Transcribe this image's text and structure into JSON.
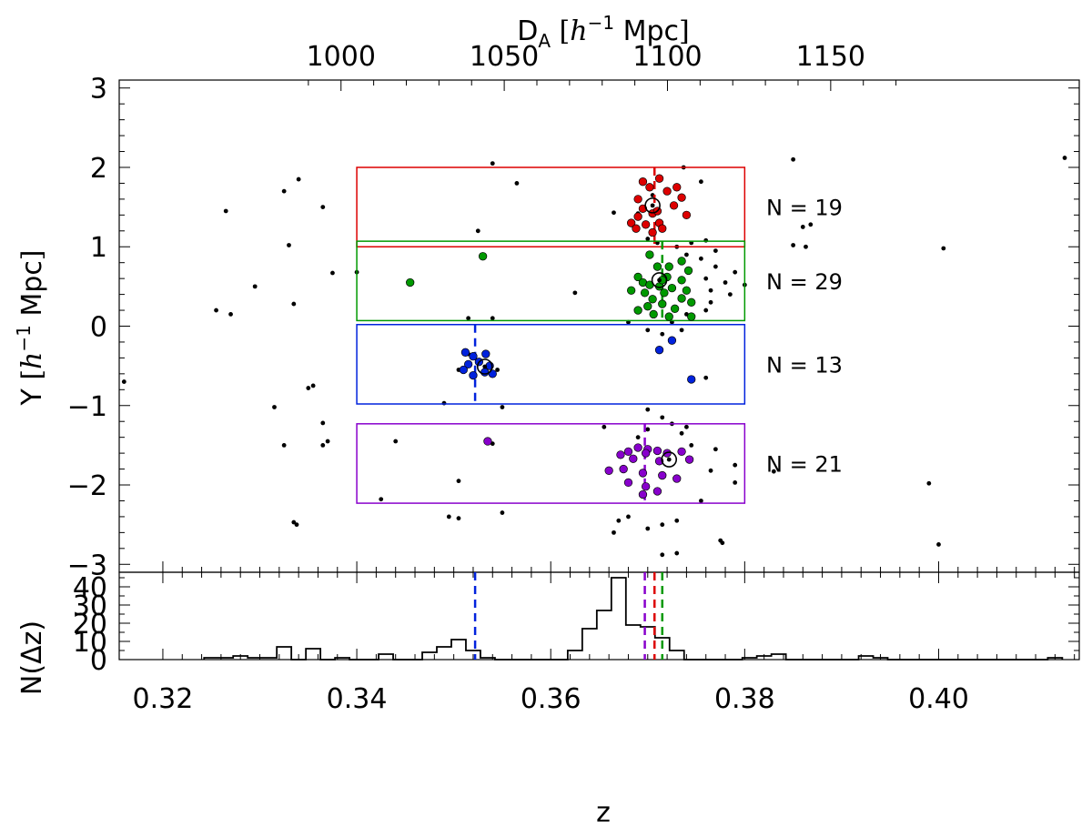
{
  "chart_data": {
    "type": "scatter",
    "top_panel": {
      "ylabel_prefix": "Y",
      "ylabel_h": "h",
      "ylabel_exp": "−1",
      "ylabel_unit": "Mpc",
      "ylim": [
        -3.1,
        3.1
      ],
      "yticks": [
        -3,
        -2,
        -1,
        0,
        1,
        2,
        3
      ],
      "ytick_labels": [
        "−3",
        "−2",
        "−1",
        "0",
        "1",
        "2",
        "3"
      ],
      "top_axis": {
        "label_prefix": "D",
        "label_sub": "A",
        "label_h": "h",
        "label_exp": "−1",
        "label_unit": "Mpc",
        "ticks": [
          1000,
          1050,
          1100,
          1150
        ],
        "tick_labels": [
          "1000",
          "1050",
          "1100",
          "1150"
        ]
      },
      "groups": [
        {
          "color": "#dd0000",
          "z_range": [
            0.34,
            0.38
          ],
          "y_range": [
            1.0,
            2.0
          ],
          "mean_z": 0.3707,
          "center": [
            0.3705,
            1.52
          ],
          "count_label": "N = 19",
          "points": [
            [
              0.3695,
              1.82
            ],
            [
              0.3712,
              1.86
            ],
            [
              0.3702,
              1.75
            ],
            [
              0.372,
              1.7
            ],
            [
              0.373,
              1.75
            ],
            [
              0.3735,
              1.62
            ],
            [
              0.369,
              1.6
            ],
            [
              0.3695,
              1.48
            ],
            [
              0.3705,
              1.42
            ],
            [
              0.369,
              1.38
            ],
            [
              0.371,
              1.45
            ],
            [
              0.3683,
              1.3
            ],
            [
              0.3688,
              1.23
            ],
            [
              0.3698,
              1.28
            ],
            [
              0.3712,
              1.3
            ],
            [
              0.3727,
              1.52
            ],
            [
              0.374,
              1.4
            ],
            [
              0.3715,
              1.23
            ],
            [
              0.3705,
              1.18
            ]
          ]
        },
        {
          "color": "#009900",
          "z_range": [
            0.34,
            0.38
          ],
          "y_range": [
            0.07,
            1.07
          ],
          "mean_z": 0.3715,
          "center": [
            0.3712,
            0.58
          ],
          "count_label": "N = 29",
          "points": [
            [
              0.3455,
              0.55
            ],
            [
              0.353,
              0.88
            ],
            [
              0.3702,
              0.9
            ],
            [
              0.371,
              0.75
            ],
            [
              0.3722,
              0.75
            ],
            [
              0.369,
              0.62
            ],
            [
              0.372,
              0.62
            ],
            [
              0.3735,
              0.58
            ],
            [
              0.3742,
              0.7
            ],
            [
              0.3695,
              0.55
            ],
            [
              0.3702,
              0.52
            ],
            [
              0.3712,
              0.5
            ],
            [
              0.3725,
              0.48
            ],
            [
              0.3683,
              0.45
            ],
            [
              0.3697,
              0.42
            ],
            [
              0.3717,
              0.42
            ],
            [
              0.374,
              0.45
            ],
            [
              0.3705,
              0.34
            ],
            [
              0.3735,
              0.35
            ],
            [
              0.3745,
              0.3
            ],
            [
              0.37,
              0.25
            ],
            [
              0.3715,
              0.28
            ],
            [
              0.3728,
              0.22
            ],
            [
              0.369,
              0.2
            ],
            [
              0.3706,
              0.15
            ],
            [
              0.3722,
              0.12
            ],
            [
              0.3745,
              0.12
            ],
            [
              0.3715,
              0.58
            ],
            [
              0.3735,
              0.82
            ]
          ]
        },
        {
          "color": "#0022dd",
          "z_range": [
            0.34,
            0.38
          ],
          "y_range": [
            -0.98,
            0.02
          ],
          "mean_z": 0.3522,
          "center": [
            0.3532,
            -0.51
          ],
          "count_label": "N = 13",
          "points": [
            [
              0.3512,
              -0.33
            ],
            [
              0.352,
              -0.38
            ],
            [
              0.3533,
              -0.35
            ],
            [
              0.3515,
              -0.48
            ],
            [
              0.3526,
              -0.45
            ],
            [
              0.3537,
              -0.5
            ],
            [
              0.351,
              -0.55
            ],
            [
              0.352,
              -0.62
            ],
            [
              0.3532,
              -0.58
            ],
            [
              0.354,
              -0.6
            ],
            [
              0.3712,
              -0.3
            ],
            [
              0.3725,
              -0.18
            ],
            [
              0.3745,
              -0.67
            ]
          ]
        },
        {
          "color": "#8800cc",
          "z_range": [
            0.34,
            0.38
          ],
          "y_range": [
            -2.23,
            -1.23
          ],
          "mean_z": 0.3697,
          "center": [
            0.3722,
            -1.68
          ],
          "count_label": "N = 21",
          "points": [
            [
              0.3535,
              -1.45
            ],
            [
              0.368,
              -1.58
            ],
            [
              0.369,
              -1.53
            ],
            [
              0.37,
              -1.55
            ],
            [
              0.371,
              -1.57
            ],
            [
              0.372,
              -1.6
            ],
            [
              0.3735,
              -1.58
            ],
            [
              0.3743,
              -1.68
            ],
            [
              0.3672,
              -1.62
            ],
            [
              0.3685,
              -1.67
            ],
            [
              0.3698,
              -1.6
            ],
            [
              0.3712,
              -1.7
            ],
            [
              0.366,
              -1.82
            ],
            [
              0.3675,
              -1.8
            ],
            [
              0.3695,
              -1.85
            ],
            [
              0.3715,
              -1.88
            ],
            [
              0.373,
              -1.92
            ],
            [
              0.368,
              -1.97
            ],
            [
              0.3698,
              -2.02
            ],
            [
              0.371,
              -2.08
            ],
            [
              0.3695,
              -2.12
            ]
          ]
        }
      ],
      "background_points": [
        [
          0.3265,
          1.45
        ],
        [
          0.334,
          1.85
        ],
        [
          0.3365,
          1.5
        ],
        [
          0.3325,
          1.7
        ],
        [
          0.333,
          1.02
        ],
        [
          0.3375,
          0.67
        ],
        [
          0.3335,
          0.28
        ],
        [
          0.3295,
          0.5
        ],
        [
          0.3255,
          0.2
        ],
        [
          0.327,
          0.15
        ],
        [
          0.354,
          2.05
        ],
        [
          0.3565,
          1.8
        ],
        [
          0.3525,
          1.2
        ],
        [
          0.3625,
          0.42
        ],
        [
          0.3515,
          0.1
        ],
        [
          0.354,
          0.1
        ],
        [
          0.3665,
          1.43
        ],
        [
          0.369,
          1.42
        ],
        [
          0.3705,
          1.65
        ],
        [
          0.3737,
          2.0
        ],
        [
          0.3755,
          1.82
        ],
        [
          0.37,
          1.1
        ],
        [
          0.371,
          1.05
        ],
        [
          0.373,
          1.0
        ],
        [
          0.3745,
          1.05
        ],
        [
          0.376,
          1.08
        ],
        [
          0.377,
          0.95
        ],
        [
          0.374,
          0.9
        ],
        [
          0.3755,
          0.85
        ],
        [
          0.377,
          0.75
        ],
        [
          0.379,
          0.68
        ],
        [
          0.376,
          0.6
        ],
        [
          0.378,
          0.55
        ],
        [
          0.38,
          0.52
        ],
        [
          0.3765,
          0.45
        ],
        [
          0.3785,
          0.4
        ],
        [
          0.3765,
          0.3
        ],
        [
          0.376,
          0.2
        ],
        [
          0.374,
          0.15
        ],
        [
          0.3725,
          0.05
        ],
        [
          0.368,
          0.05
        ],
        [
          0.37,
          -0.05
        ],
        [
          0.3715,
          -0.1
        ],
        [
          0.3735,
          -0.05
        ],
        [
          0.3725,
          -0.2
        ],
        [
          0.3545,
          -0.55
        ],
        [
          0.3515,
          -0.35
        ],
        [
          0.3505,
          -0.55
        ],
        [
          0.349,
          -0.97
        ],
        [
          0.355,
          -1.02
        ],
        [
          0.376,
          -0.65
        ],
        [
          0.3315,
          -1.02
        ],
        [
          0.3355,
          -0.75
        ],
        [
          0.335,
          -0.78
        ],
        [
          0.3365,
          -1.22
        ],
        [
          0.337,
          -1.45
        ],
        [
          0.3365,
          -1.5
        ],
        [
          0.3325,
          -1.5
        ],
        [
          0.3335,
          -2.47
        ],
        [
          0.3338,
          -2.5
        ],
        [
          0.344,
          -1.45
        ],
        [
          0.3425,
          -2.18
        ],
        [
          0.3505,
          -1.95
        ],
        [
          0.3495,
          -2.4
        ],
        [
          0.3505,
          -2.42
        ],
        [
          0.355,
          -2.35
        ],
        [
          0.354,
          -1.48
        ],
        [
          0.3655,
          -1.27
        ],
        [
          0.37,
          -1.05
        ],
        [
          0.3715,
          -1.15
        ],
        [
          0.3725,
          -1.23
        ],
        [
          0.374,
          -1.27
        ],
        [
          0.3735,
          -1.35
        ],
        [
          0.37,
          -1.3
        ],
        [
          0.369,
          -1.4
        ],
        [
          0.3745,
          -1.5
        ],
        [
          0.377,
          -1.55
        ],
        [
          0.379,
          -1.75
        ],
        [
          0.3765,
          -1.82
        ],
        [
          0.379,
          -1.97
        ],
        [
          0.3755,
          -2.2
        ],
        [
          0.368,
          -2.4
        ],
        [
          0.367,
          -2.45
        ],
        [
          0.3665,
          -2.6
        ],
        [
          0.37,
          -2.55
        ],
        [
          0.3715,
          -2.5
        ],
        [
          0.373,
          -2.45
        ],
        [
          0.3715,
          -2.88
        ],
        [
          0.373,
          -2.86
        ],
        [
          0.3775,
          -2.7
        ],
        [
          0.3777,
          -2.73
        ],
        [
          0.385,
          2.1
        ],
        [
          0.3868,
          1.28
        ],
        [
          0.386,
          1.25
        ],
        [
          0.385,
          1.02
        ],
        [
          0.3863,
          1.0
        ],
        [
          0.383,
          -1.83
        ],
        [
          0.399,
          -1.98
        ],
        [
          0.4,
          -2.75
        ],
        [
          0.4005,
          0.98
        ],
        [
          0.413,
          2.12
        ],
        [
          0.316,
          -0.7
        ],
        [
          0.34,
          0.68
        ]
      ]
    },
    "bottom_panel": {
      "type": "histogram",
      "ylabel": "N(Δz)",
      "ylim": [
        0,
        48
      ],
      "yticks": [
        0,
        10,
        20,
        30,
        40
      ],
      "ytick_labels": [
        "0",
        "10",
        "20",
        "30",
        "40"
      ],
      "bin_width": 0.0015,
      "bins": [
        {
          "z": 0.325,
          "n": 1
        },
        {
          "z": 0.3265,
          "n": 1
        },
        {
          "z": 0.328,
          "n": 2
        },
        {
          "z": 0.3295,
          "n": 1
        },
        {
          "z": 0.331,
          "n": 1
        },
        {
          "z": 0.3325,
          "n": 7
        },
        {
          "z": 0.334,
          "n": 0
        },
        {
          "z": 0.3355,
          "n": 6
        },
        {
          "z": 0.337,
          "n": 0
        },
        {
          "z": 0.3385,
          "n": 1
        },
        {
          "z": 0.34,
          "n": 0
        },
        {
          "z": 0.3415,
          "n": 0
        },
        {
          "z": 0.343,
          "n": 3
        },
        {
          "z": 0.3445,
          "n": 0
        },
        {
          "z": 0.346,
          "n": 0
        },
        {
          "z": 0.3475,
          "n": 4
        },
        {
          "z": 0.349,
          "n": 7
        },
        {
          "z": 0.3505,
          "n": 11
        },
        {
          "z": 0.352,
          "n": 5
        },
        {
          "z": 0.3535,
          "n": 1
        },
        {
          "z": 0.355,
          "n": 0
        },
        {
          "z": 0.3565,
          "n": 0
        },
        {
          "z": 0.358,
          "n": 0
        },
        {
          "z": 0.3595,
          "n": 0
        },
        {
          "z": 0.361,
          "n": 0
        },
        {
          "z": 0.3625,
          "n": 5
        },
        {
          "z": 0.364,
          "n": 17
        },
        {
          "z": 0.3655,
          "n": 27
        },
        {
          "z": 0.367,
          "n": 45
        },
        {
          "z": 0.3685,
          "n": 19
        },
        {
          "z": 0.37,
          "n": 18
        },
        {
          "z": 0.3715,
          "n": 12
        },
        {
          "z": 0.373,
          "n": 5
        },
        {
          "z": 0.3745,
          "n": 0
        },
        {
          "z": 0.376,
          "n": 0
        },
        {
          "z": 0.3775,
          "n": 0
        },
        {
          "z": 0.379,
          "n": 0
        },
        {
          "z": 0.3805,
          "n": 1
        },
        {
          "z": 0.382,
          "n": 2
        },
        {
          "z": 0.3835,
          "n": 3
        },
        {
          "z": 0.385,
          "n": 0
        },
        {
          "z": 0.3865,
          "n": 0
        },
        {
          "z": 0.388,
          "n": 0
        },
        {
          "z": 0.3895,
          "n": 0
        },
        {
          "z": 0.391,
          "n": 0
        },
        {
          "z": 0.3925,
          "n": 2
        },
        {
          "z": 0.394,
          "n": 1
        },
        {
          "z": 0.3955,
          "n": 0
        },
        {
          "z": 0.397,
          "n": 0
        },
        {
          "z": 0.3985,
          "n": 0
        },
        {
          "z": 0.4,
          "n": 0
        },
        {
          "z": 0.4015,
          "n": 0
        },
        {
          "z": 0.403,
          "n": 0
        },
        {
          "z": 0.4045,
          "n": 0
        },
        {
          "z": 0.406,
          "n": 0
        },
        {
          "z": 0.4075,
          "n": 0
        },
        {
          "z": 0.409,
          "n": 0
        },
        {
          "z": 0.4105,
          "n": 0
        },
        {
          "z": 0.412,
          "n": 1
        }
      ]
    },
    "xaxis": {
      "label": "z",
      "xlim": [
        0.3155,
        0.4145
      ],
      "ticks": [
        0.32,
        0.34,
        0.36,
        0.38,
        0.4
      ],
      "tick_labels": [
        "0.32",
        "0.34",
        "0.36",
        "0.38",
        "0.40"
      ]
    }
  }
}
